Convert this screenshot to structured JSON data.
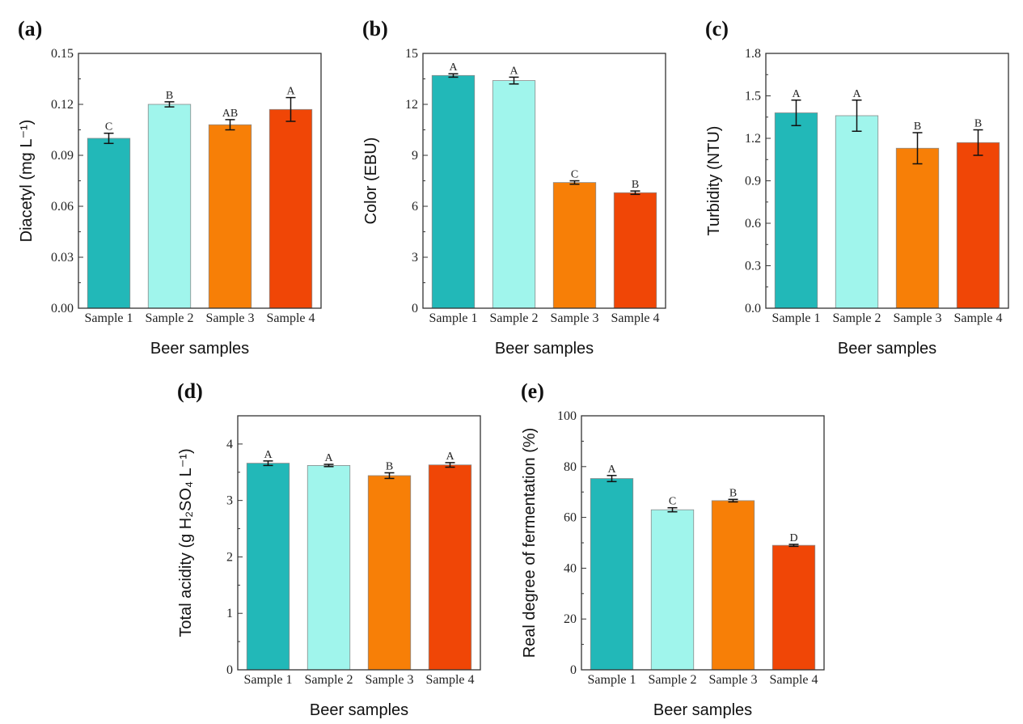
{
  "chart_data": [
    {
      "panel": "(a)",
      "type": "bar",
      "categories": [
        "Sample 1",
        "Sample 2",
        "Sample 3",
        "Sample 4"
      ],
      "values": [
        0.1,
        0.12,
        0.108,
        0.117
      ],
      "errors": [
        0.003,
        0.0015,
        0.003,
        0.007
      ],
      "letters": [
        "C",
        "B",
        "AB",
        "A"
      ],
      "xlabel": "Beer samples",
      "ylabel": "Diacetyl (mg L⁻¹)",
      "ylim": [
        0,
        0.15
      ],
      "yticks": [
        "0.00",
        "0.03",
        "0.06",
        "0.09",
        "0.12",
        "0.15"
      ],
      "ystep": 0.03
    },
    {
      "panel": "(b)",
      "type": "bar",
      "categories": [
        "Sample 1",
        "Sample 2",
        "Sample 3",
        "Sample 4"
      ],
      "values": [
        13.7,
        13.4,
        7.4,
        6.8
      ],
      "errors": [
        0.1,
        0.2,
        0.1,
        0.1
      ],
      "letters": [
        "A",
        "A",
        "C",
        "B"
      ],
      "xlabel": "Beer samples",
      "ylabel": "Color (EBU)",
      "ylim": [
        0,
        15
      ],
      "yticks": [
        "0",
        "3",
        "6",
        "9",
        "12",
        "15"
      ],
      "ystep": 3
    },
    {
      "panel": "(c)",
      "type": "bar",
      "categories": [
        "Sample 1",
        "Sample 2",
        "Sample 3",
        "Sample 4"
      ],
      "values": [
        1.38,
        1.36,
        1.13,
        1.17
      ],
      "errors": [
        0.09,
        0.11,
        0.11,
        0.09
      ],
      "letters": [
        "A",
        "A",
        "B",
        "B"
      ],
      "xlabel": "Beer samples",
      "ylabel": "Turbidity (NTU)",
      "ylim": [
        0,
        1.8
      ],
      "yticks": [
        "0.0",
        "0.3",
        "0.6",
        "0.9",
        "1.2",
        "1.5",
        "1.8"
      ],
      "ystep": 0.3
    },
    {
      "panel": "(d)",
      "type": "bar",
      "categories": [
        "Sample 1",
        "Sample 2",
        "Sample 3",
        "Sample 4"
      ],
      "values": [
        3.66,
        3.62,
        3.44,
        3.63
      ],
      "errors": [
        0.04,
        0.02,
        0.05,
        0.04
      ],
      "letters": [
        "A",
        "A",
        "B",
        "A"
      ],
      "xlabel": "Beer samples",
      "ylabel": "Total acidity (g H₂SO₄ L⁻¹)",
      "ylim": [
        0,
        4.5
      ],
      "yticks": [
        "0",
        "1",
        "2",
        "3",
        "4"
      ],
      "ystep": 1
    },
    {
      "panel": "(e)",
      "type": "bar",
      "categories": [
        "Sample 1",
        "Sample 2",
        "Sample 3",
        "Sample 4"
      ],
      "values": [
        75.3,
        63.0,
        66.6,
        49.0
      ],
      "errors": [
        1.2,
        0.8,
        0.5,
        0.4
      ],
      "letters": [
        "A",
        "C",
        "B",
        "D"
      ],
      "xlabel": "Beer samples",
      "ylabel": "Real degree of fermentation (%)",
      "ylim": [
        0,
        100
      ],
      "yticks": [
        "0",
        "20",
        "40",
        "60",
        "80",
        "100"
      ],
      "ystep": 20
    }
  ],
  "colors": [
    "#22b8b8",
    "#a0f5ec",
    "#f77f07",
    "#f04606"
  ],
  "grid": false,
  "legend": "none"
}
